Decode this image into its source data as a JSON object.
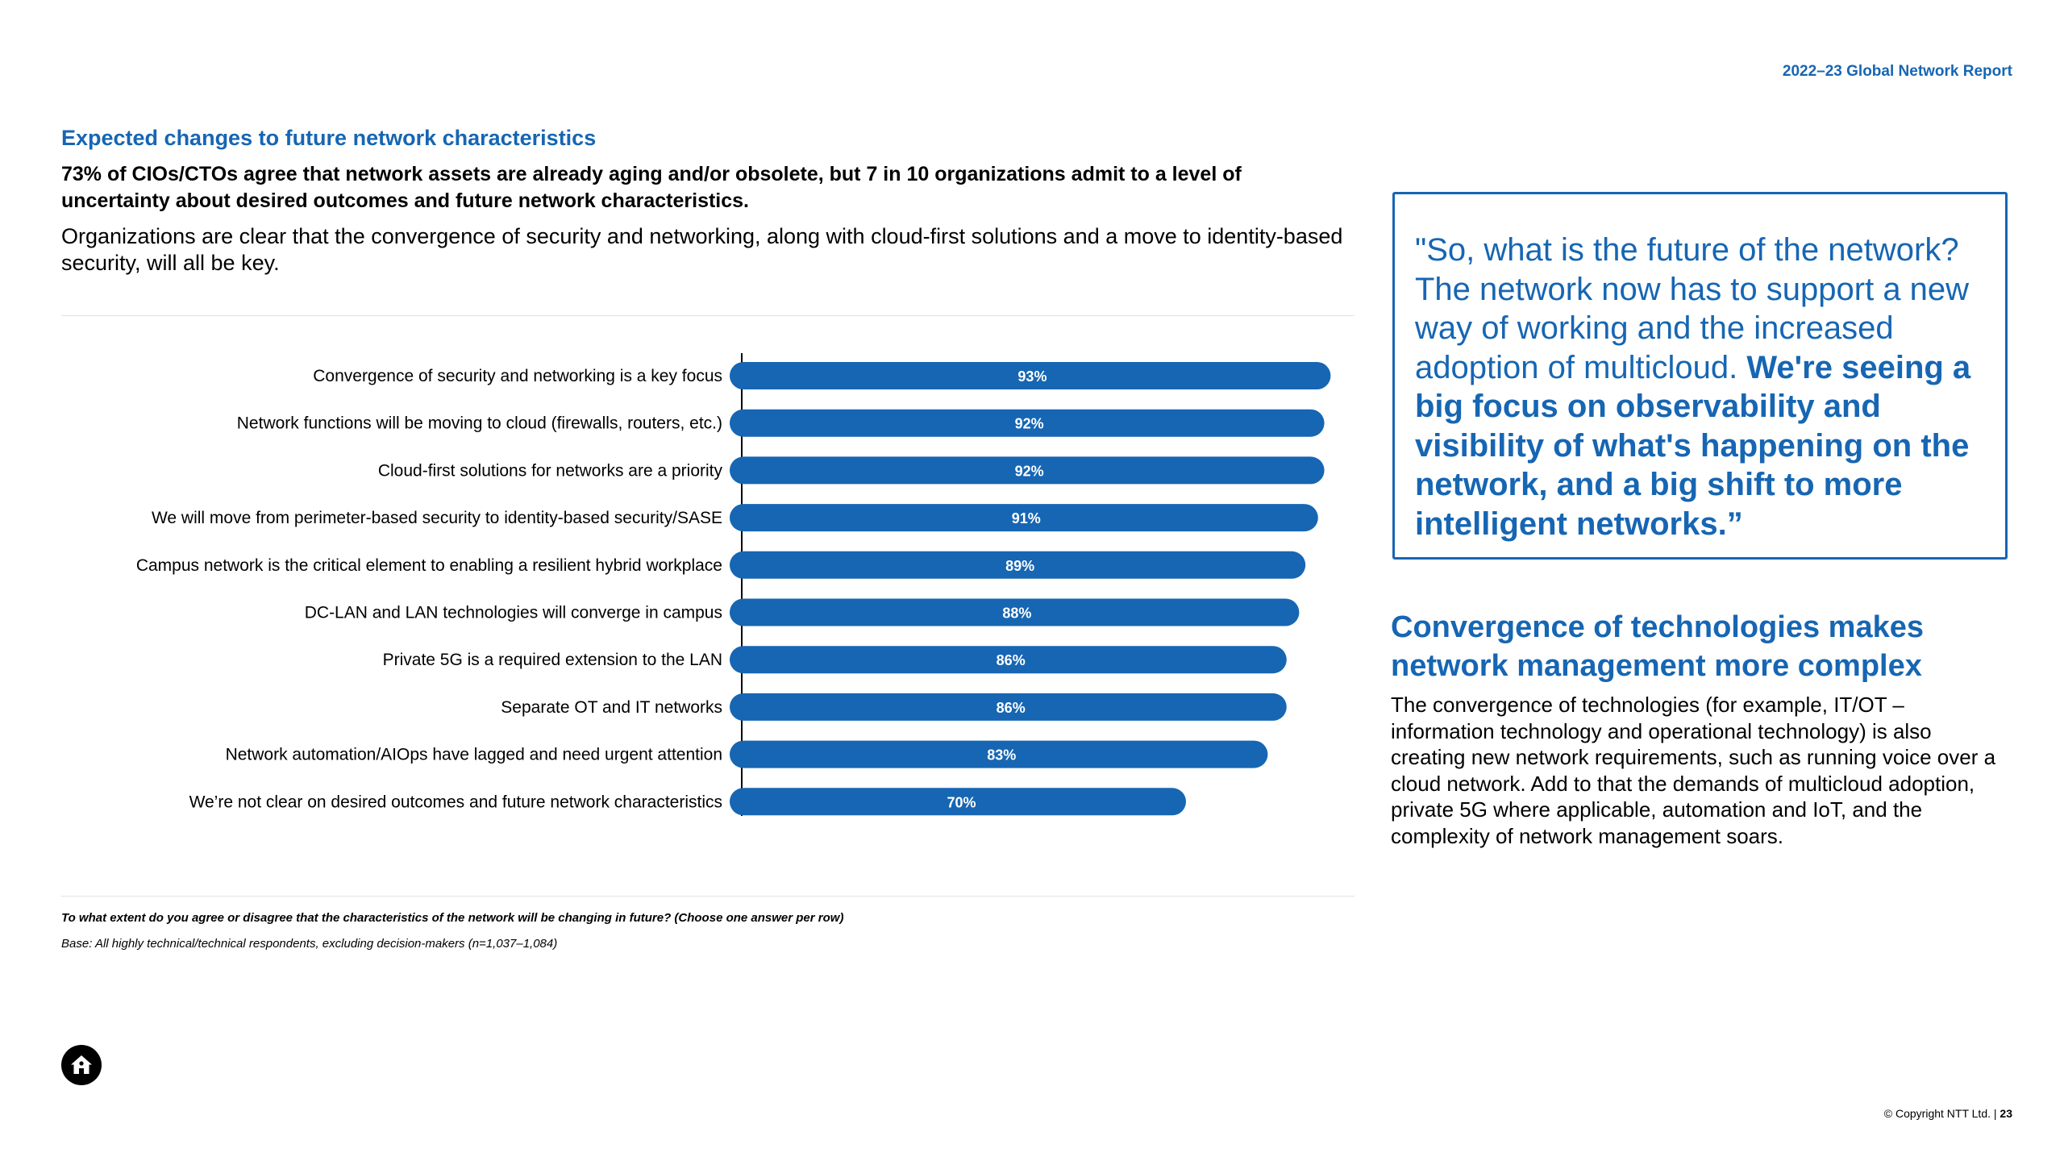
{
  "header": {
    "report_title": "2022–23 Global Network Report"
  },
  "section": {
    "title": "Expected changes to future network characteristics",
    "headline": "73% of CIOs/CTOs agree that network assets are already aging and/or obsolete, but 7 in 10 organizations admit to a level of uncertainty about desired outcomes and future network characteristics.",
    "intro": "Organizations are clear that the convergence of security and networking, along with cloud-first solutions and a move to identity-based security, will all be key."
  },
  "chart_data": {
    "type": "bar",
    "orientation": "horizontal",
    "title": "",
    "xlabel": "",
    "ylabel": "",
    "xlim": [
      0,
      100
    ],
    "categories": [
      "Convergence of security and networking is a key focus",
      "Network functions will be moving to cloud (firewalls, routers, etc.)",
      "Cloud-first solutions for networks are a priority",
      "We will move from perimeter-based security to identity-based security/SASE",
      "Campus network is the critical element to enabling a resilient hybrid workplace",
      "DC-LAN and LAN technologies will converge in campus",
      "Private 5G is a required extension to the LAN",
      "Separate OT and IT networks",
      "Network automation/AIOps have lagged and need urgent attention",
      "We’re not clear on desired outcomes and future network characteristics"
    ],
    "values": [
      93,
      92,
      92,
      91,
      89,
      88,
      86,
      86,
      83,
      70
    ],
    "value_labels": [
      "93%",
      "92%",
      "92%",
      "91%",
      "89%",
      "88%",
      "86%",
      "86%",
      "83%",
      "70%"
    ],
    "bar_color": "#1666b3"
  },
  "footnotes": {
    "question": "To what extent do you agree or disagree that the characteristics of the network will be changing in future?  (Choose one answer per row)",
    "base": "Base: All highly technical/technical respondents, excluding decision-makers (n=1,037–1,084)"
  },
  "quote": {
    "regular": "\"So, what is the future of the network? The network now has to support a new way of working and the increased adoption of multicloud. ",
    "bold": "We're seeing a big focus on observability and visibility of what's happening on the network, and a big shift to more intelligent networks.”"
  },
  "side": {
    "title": "Convergence of technologies makes network management more complex",
    "body": "The convergence of technologies (for example, IT/OT – information technology and operational technology) is also creating new network requirements, such as running voice over a cloud network. Add to that the demands of multicloud adoption, private 5G where applicable, automation and IoT, and the complexity of network management soars."
  },
  "footer": {
    "copyright": "© Copyright NTT Ltd. | ",
    "page_number": "23"
  },
  "icons": {
    "home": "home-icon"
  },
  "colors": {
    "accent": "#1666b3",
    "text": "#000000"
  }
}
